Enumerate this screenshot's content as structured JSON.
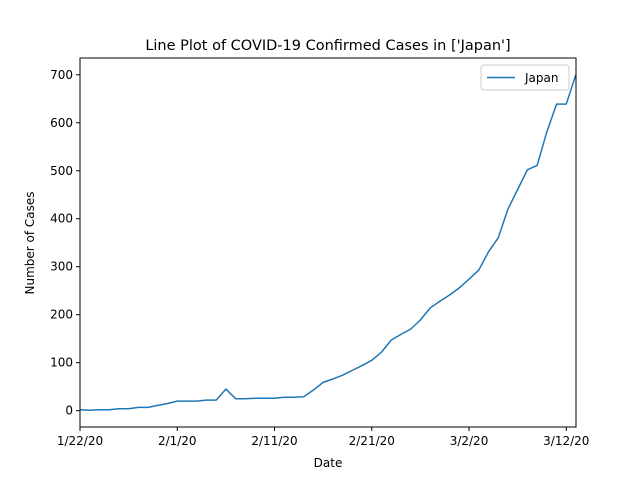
{
  "chart_data": {
    "type": "line",
    "title": "Line Plot of COVID-19 Confirmed Cases in ['Japan']",
    "xlabel": "Date",
    "ylabel": "Number of Cases",
    "x_start": "1/22/20",
    "x_end": "3/13/20",
    "xlim": [
      "1/22/20",
      "3/13/20"
    ],
    "ylim": [
      -34,
      735
    ],
    "x_ticks": [
      "1/22/20",
      "2/1/20",
      "2/11/20",
      "2/21/20",
      "3/2/20",
      "3/12/20"
    ],
    "y_ticks": [
      0,
      100,
      200,
      300,
      400,
      500,
      600,
      700
    ],
    "grid": false,
    "legend_position": "top-right",
    "series": [
      {
        "name": "Japan",
        "color": "#1f77b4",
        "values": [
          2,
          1,
          2,
          2,
          4,
          4,
          7,
          7,
          11,
          15,
          20,
          20,
          20,
          22,
          22,
          45,
          25,
          25,
          26,
          26,
          26,
          28,
          28,
          29,
          43,
          59,
          66,
          74,
          84,
          94,
          105,
          122,
          147,
          159,
          170,
          189,
          214,
          228,
          241,
          256,
          274,
          293,
          331,
          360,
          420,
          461,
          502,
          511,
          581,
          639,
          639,
          701
        ]
      }
    ]
  }
}
